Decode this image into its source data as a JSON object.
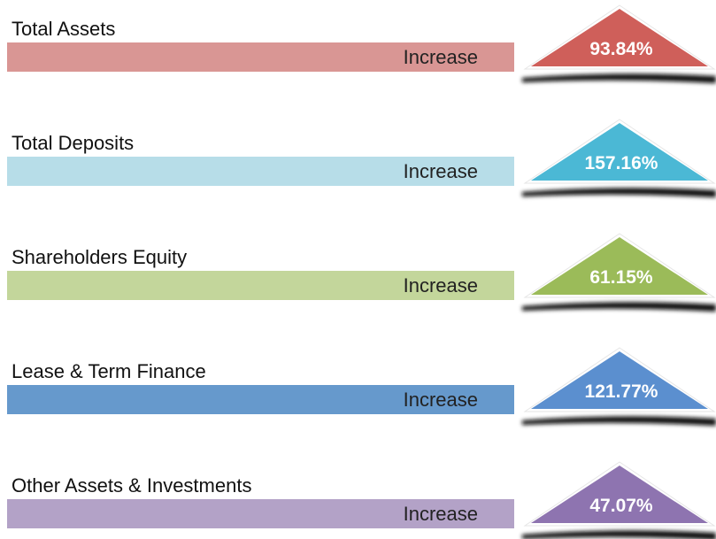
{
  "items": [
    {
      "label": "Total Assets",
      "status": "Increase",
      "value": "93.84%",
      "bar_color": "#d99694",
      "triangle_color": "#cf5f5a"
    },
    {
      "label": "Total Deposits",
      "status": "Increase",
      "value": "157.16%",
      "bar_color": "#b7dde8",
      "triangle_color": "#4bb8d5"
    },
    {
      "label": "Shareholders Equity",
      "status": "Increase",
      "value": "61.15%",
      "bar_color": "#c3d69b",
      "triangle_color": "#9bbb59"
    },
    {
      "label": "Lease & Term Finance",
      "status": "Increase",
      "value": "121.77%",
      "bar_color": "#6699cc",
      "triangle_color": "#5b8fcf"
    },
    {
      "label": "Other Assets & Investments",
      "status": "Increase",
      "value": "47.07%",
      "bar_color": "#b3a2c7",
      "triangle_color": "#8e74b0"
    }
  ]
}
